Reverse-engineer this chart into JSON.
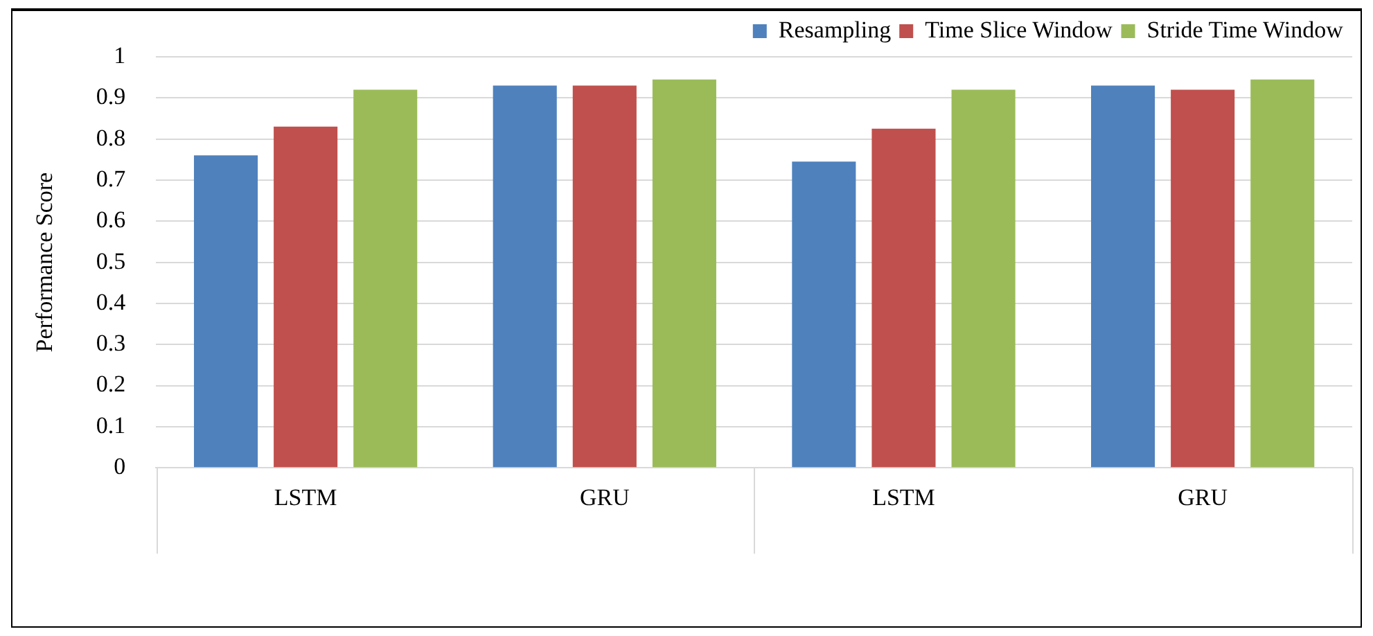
{
  "chart_data": {
    "type": "bar",
    "ylabel": "Performance Score",
    "categories": [
      "LSTM",
      "GRU",
      "LSTM",
      "GRU"
    ],
    "series": [
      {
        "name": "Resampling",
        "color": "#4f81bd",
        "values": [
          0.76,
          0.93,
          0.745,
          0.93
        ]
      },
      {
        "name": "Time Slice Window",
        "color": "#c0504d",
        "values": [
          0.83,
          0.93,
          0.825,
          0.92
        ]
      },
      {
        "name": "Stride Time Window",
        "color": "#9bbb59",
        "values": [
          0.92,
          0.945,
          0.92,
          0.945
        ]
      }
    ],
    "ylim": [
      0,
      1
    ],
    "yticks": [
      0,
      0.1,
      0.2,
      0.3,
      0.4,
      0.5,
      0.6,
      0.7,
      0.8,
      0.9,
      1
    ],
    "grid": "y",
    "legend": "top"
  }
}
